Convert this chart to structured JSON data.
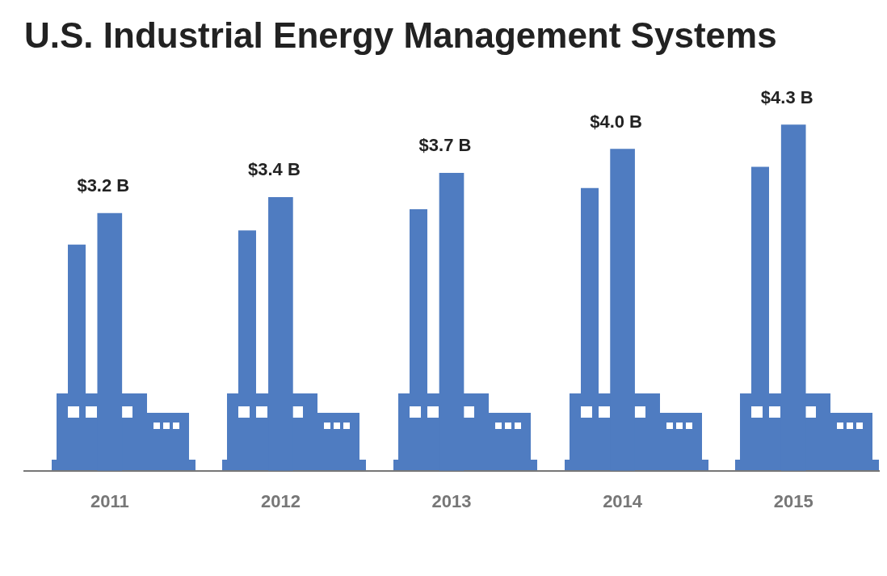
{
  "chart_data": {
    "type": "bar",
    "title": "U.S. Industrial Energy Management Systems",
    "categories": [
      "2011",
      "2012",
      "2013",
      "2014",
      "2015"
    ],
    "values": [
      3.2,
      3.4,
      3.7,
      4.0,
      4.3
    ],
    "value_labels": [
      "$3.2 B",
      "$3.4 B",
      "$3.7 B",
      "$4.0 B",
      "$4.3 B"
    ],
    "color": "#4f7cc1",
    "grid": false,
    "legend": false
  }
}
